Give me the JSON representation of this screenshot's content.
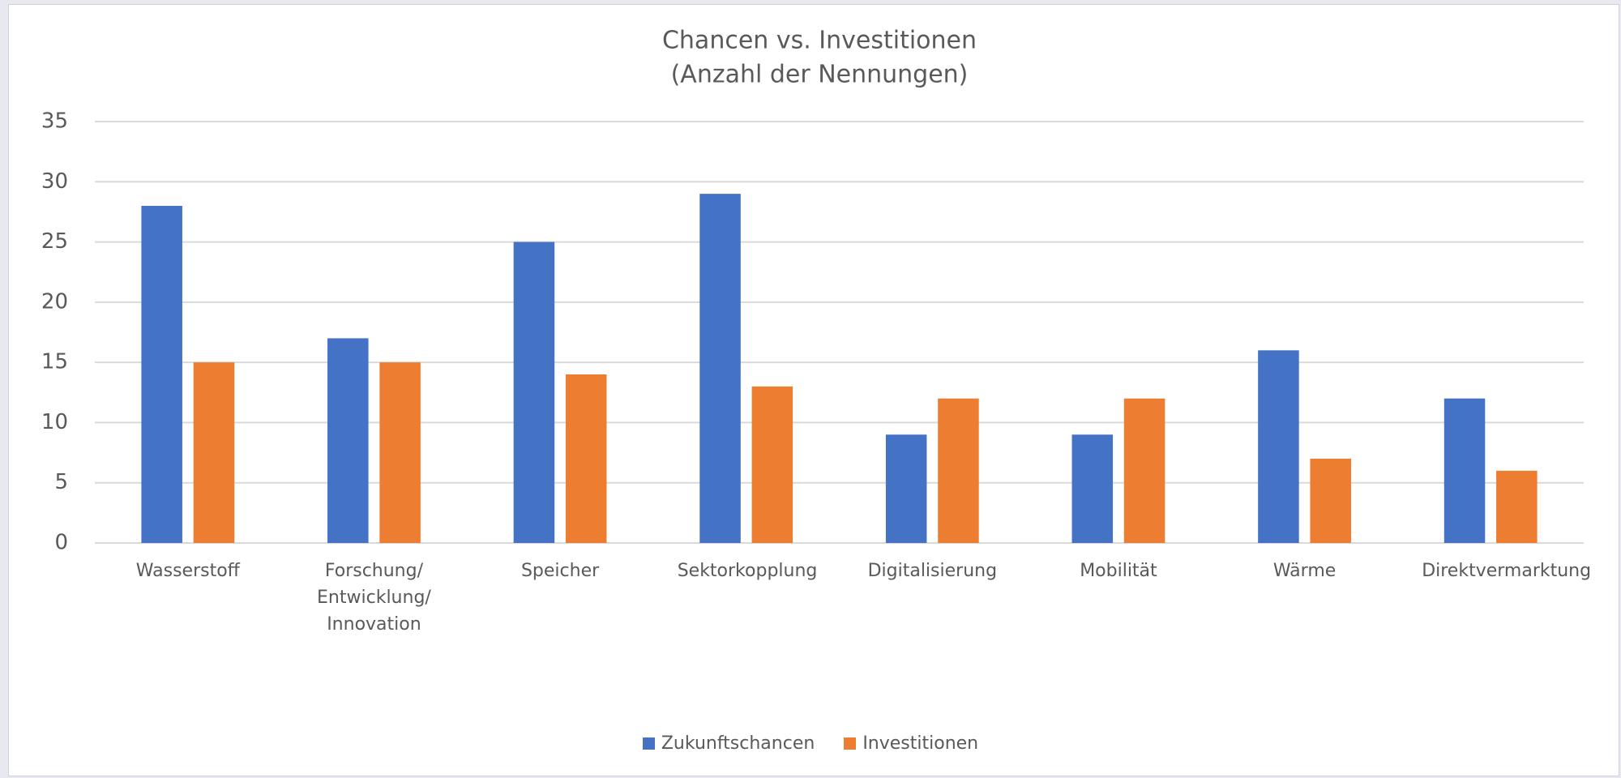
{
  "chart_data": {
    "type": "bar",
    "title": "Chancen vs. Investitionen",
    "subtitle": "(Anzahl der Nennungen)",
    "categories": [
      "Wasserstoff",
      "Forschung/ Entwicklung/ Innovation",
      "Speicher",
      "Sektorkopplung",
      "Digitalisierung",
      "Mobilität",
      "Wärme",
      "Direktvermarktung"
    ],
    "series": [
      {
        "name": "Zukunftschancen",
        "color": "#4472c4",
        "values": [
          28,
          17,
          25,
          29,
          9,
          9,
          16,
          12
        ]
      },
      {
        "name": "Investitionen",
        "color": "#ed7d31",
        "values": [
          15,
          15,
          14,
          13,
          12,
          12,
          7,
          6
        ]
      }
    ],
    "ylim": [
      0,
      35
    ],
    "yticks": [
      0,
      5,
      10,
      15,
      20,
      25,
      30,
      35
    ],
    "grid": true,
    "legend": "bottom"
  }
}
